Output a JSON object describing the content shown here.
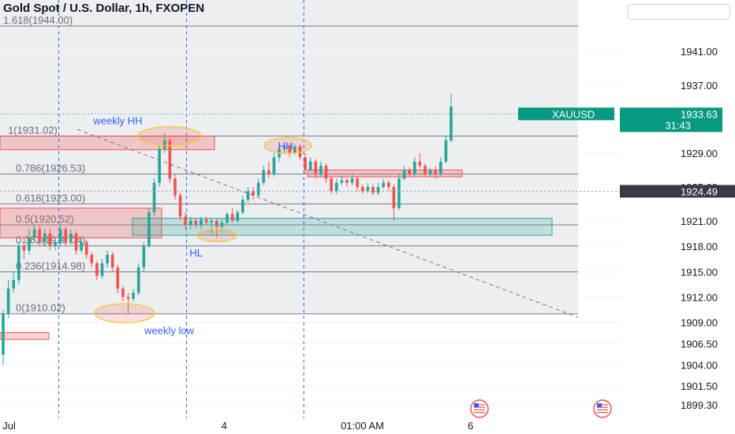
{
  "header": {
    "title": "Gold Spot / U.S. Dollar, 1h, FXOPEN"
  },
  "colors": {
    "up": "#26a69a",
    "down": "#ef5350",
    "accent": "#089981",
    "fib": "#787b86",
    "annotation": "#2962ff",
    "price_tag": "#363a45"
  },
  "chart_data": {
    "type": "candlestick",
    "symbol": "XAUUSD",
    "last_price": "1933.63",
    "countdown": "31:43",
    "crosshair_price": "1924.49",
    "price_ticks": [
      "1941.00",
      "1937.00",
      "1933.00",
      "1929.00",
      "1925.00",
      "1921.00",
      "1918.00",
      "1915.00",
      "1912.00",
      "1909.00",
      "1906.50",
      "1904.00",
      "1901.50",
      "1899.30"
    ],
    "price_range": [
      1899.0,
      1945.4
    ],
    "x_labels": [
      {
        "text": "Jul",
        "bar": 4
      },
      {
        "text": "4",
        "bar": 147
      },
      {
        "text": "01:00 AM",
        "bar": 239
      },
      {
        "text": "6",
        "bar": 311
      }
    ],
    "fib_levels": [
      {
        "label": "1.618(1944.00)",
        "value": 1944.0
      },
      {
        "label": "1(1931.02)",
        "value": 1931.02
      },
      {
        "label": "0.786(1926.53)",
        "value": 1926.53
      },
      {
        "label": "0.618(1923.00)",
        "value": 1923.0
      },
      {
        "label": "0.5(1920.52)",
        "value": 1920.52
      },
      {
        "label": "0.382(1918.04)",
        "value": 1918.04
      },
      {
        "label": "0.236(1914.98)",
        "value": 1914.98
      },
      {
        "label": "0(1910.02)",
        "value": 1910.02
      }
    ],
    "annotations": [
      {
        "text": "weekly HH",
        "bar": 60,
        "price": 1932.4
      },
      {
        "text": "HH",
        "bar": 183,
        "price": 1929.4
      },
      {
        "text": "HL",
        "bar": 124,
        "price": 1916.8
      },
      {
        "text": "weekly low",
        "bar": 94,
        "price": 1907.6
      }
    ],
    "vertical_markers_bar": [
      37,
      122,
      200
    ],
    "candles": [
      [
        1905.2,
        1910.0,
        1904.0,
        1910.5
      ],
      [
        1910.0,
        1913.0,
        1909.5,
        1914.0
      ],
      [
        1913.0,
        1914.0,
        1912.5,
        1915.0
      ],
      [
        1914.0,
        1918.0,
        1913.5,
        1918.5
      ],
      [
        1918.0,
        1917.5,
        1916.5,
        1919.0
      ],
      [
        1917.5,
        1919.0,
        1917.0,
        1920.0
      ],
      [
        1919.0,
        1920.0,
        1918.5,
        1920.5
      ],
      [
        1920.0,
        1918.5,
        1918.0,
        1920.5
      ],
      [
        1918.5,
        1919.5,
        1918.0,
        1920.0
      ],
      [
        1919.5,
        1918.0,
        1917.5,
        1920.0
      ],
      [
        1918.0,
        1918.5,
        1917.5,
        1919.0
      ],
      [
        1918.5,
        1920.0,
        1918.0,
        1920.5
      ],
      [
        1920.0,
        1918.5,
        1918.0,
        1920.3
      ],
      [
        1918.5,
        1919.5,
        1918.2,
        1920.0
      ],
      [
        1919.5,
        1917.5,
        1917.0,
        1919.8
      ],
      [
        1917.5,
        1918.5,
        1917.2,
        1919.0
      ],
      [
        1918.5,
        1917.0,
        1916.5,
        1918.8
      ],
      [
        1917.0,
        1916.0,
        1915.5,
        1917.3
      ],
      [
        1916.0,
        1914.5,
        1914.0,
        1916.3
      ],
      [
        1914.5,
        1916.0,
        1914.2,
        1916.5
      ],
      [
        1916.0,
        1917.0,
        1915.5,
        1917.5
      ],
      [
        1917.0,
        1915.5,
        1915.0,
        1917.3
      ],
      [
        1915.5,
        1913.0,
        1912.5,
        1915.8
      ],
      [
        1913.0,
        1912.0,
        1911.5,
        1913.3
      ],
      [
        1912.0,
        1911.8,
        1910.0,
        1912.5
      ],
      [
        1911.8,
        1912.5,
        1911.5,
        1913.0
      ],
      [
        1912.5,
        1915.5,
        1912.2,
        1916.0
      ],
      [
        1915.5,
        1918.0,
        1915.0,
        1918.5
      ],
      [
        1918.0,
        1922.0,
        1917.8,
        1922.5
      ],
      [
        1922.0,
        1925.5,
        1921.5,
        1926.0
      ],
      [
        1925.5,
        1929.5,
        1925.0,
        1930.0
      ],
      [
        1929.5,
        1930.5,
        1929.0,
        1931.4
      ],
      [
        1930.5,
        1926.0,
        1925.5,
        1930.8
      ],
      [
        1926.0,
        1924.0,
        1923.5,
        1926.5
      ],
      [
        1924.0,
        1921.5,
        1921.0,
        1924.3
      ],
      [
        1921.5,
        1920.5,
        1920.0,
        1922.0
      ],
      [
        1920.5,
        1921.0,
        1920.0,
        1921.5
      ],
      [
        1921.0,
        1920.5,
        1920.2,
        1921.3
      ],
      [
        1920.5,
        1921.2,
        1920.0,
        1921.5
      ],
      [
        1921.2,
        1920.8,
        1920.5,
        1921.5
      ],
      [
        1920.8,
        1921.0,
        1919.5,
        1921.3
      ],
      [
        1921.0,
        1920.3,
        1919.0,
        1921.2
      ],
      [
        1920.3,
        1920.8,
        1919.8,
        1921.2
      ],
      [
        1920.8,
        1921.8,
        1920.5,
        1922.0
      ],
      [
        1921.8,
        1921.0,
        1920.8,
        1922.5
      ],
      [
        1921.0,
        1922.0,
        1920.8,
        1922.3
      ],
      [
        1922.0,
        1923.5,
        1921.8,
        1924.0
      ],
      [
        1923.5,
        1924.5,
        1923.2,
        1925.0
      ],
      [
        1924.5,
        1924.0,
        1923.5,
        1925.0
      ],
      [
        1924.0,
        1925.5,
        1923.8,
        1926.0
      ],
      [
        1925.5,
        1927.0,
        1925.2,
        1927.5
      ],
      [
        1927.0,
        1926.5,
        1926.0,
        1928.0
      ],
      [
        1926.5,
        1928.5,
        1926.2,
        1929.0
      ],
      [
        1928.5,
        1929.5,
        1928.0,
        1930.0
      ],
      [
        1929.5,
        1929.8,
        1929.0,
        1930.3
      ],
      [
        1929.8,
        1929.0,
        1928.5,
        1930.2
      ],
      [
        1929.0,
        1929.8,
        1928.8,
        1930.0
      ],
      [
        1929.8,
        1928.5,
        1928.2,
        1930.0
      ],
      [
        1928.5,
        1927.0,
        1926.5,
        1929.0
      ],
      [
        1927.0,
        1928.0,
        1926.8,
        1928.5
      ],
      [
        1928.0,
        1926.5,
        1926.0,
        1928.3
      ],
      [
        1926.5,
        1927.5,
        1926.2,
        1928.0
      ],
      [
        1927.5,
        1926.0,
        1925.5,
        1927.8
      ],
      [
        1926.0,
        1924.5,
        1924.2,
        1926.3
      ],
      [
        1924.5,
        1925.5,
        1924.2,
        1926.0
      ],
      [
        1925.5,
        1925.8,
        1925.2,
        1926.3
      ],
      [
        1925.8,
        1925.5,
        1925.0,
        1926.0
      ],
      [
        1925.5,
        1926.0,
        1925.2,
        1926.5
      ],
      [
        1926.0,
        1925.0,
        1924.5,
        1926.3
      ],
      [
        1925.0,
        1924.5,
        1924.2,
        1925.3
      ],
      [
        1924.5,
        1925.0,
        1924.3,
        1925.5
      ],
      [
        1925.0,
        1924.3,
        1924.0,
        1925.3
      ],
      [
        1924.3,
        1925.0,
        1924.0,
        1925.5
      ],
      [
        1925.0,
        1925.5,
        1924.8,
        1926.0
      ],
      [
        1925.5,
        1925.0,
        1924.5,
        1925.8
      ],
      [
        1925.0,
        1922.5,
        1921.0,
        1925.3
      ],
      [
        1922.5,
        1926.0,
        1922.3,
        1926.5
      ],
      [
        1926.0,
        1927.0,
        1925.8,
        1927.5
      ],
      [
        1927.0,
        1926.5,
        1926.2,
        1927.3
      ],
      [
        1926.5,
        1928.0,
        1926.3,
        1928.5
      ],
      [
        1928.0,
        1927.5,
        1927.2,
        1929.0
      ],
      [
        1927.5,
        1926.5,
        1926.2,
        1927.8
      ],
      [
        1926.5,
        1927.0,
        1926.3,
        1927.3
      ],
      [
        1927.0,
        1926.5,
        1926.0,
        1927.5
      ],
      [
        1926.5,
        1928.0,
        1926.3,
        1928.5
      ],
      [
        1928.0,
        1930.5,
        1927.8,
        1931.0
      ],
      [
        1930.5,
        1934.5,
        1930.3,
        1936.0
      ]
    ],
    "candle_bar_start": 0,
    "candle_bar_end": 298
  }
}
